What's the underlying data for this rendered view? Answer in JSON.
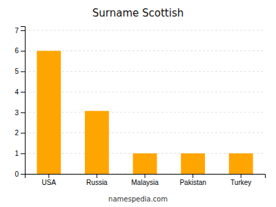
{
  "chart_data": {
    "type": "bar",
    "title": "Surname Scottish",
    "categories": [
      "USA",
      "Russia",
      "Malaysia",
      "Pakistan",
      "Turkey"
    ],
    "values": [
      6,
      3.07,
      1,
      1,
      1
    ],
    "color": "#FFA500",
    "ylim": [
      0,
      7.2
    ],
    "yticks": [
      0,
      1,
      2,
      3,
      4,
      5,
      6,
      7
    ],
    "grid": true,
    "footer": "namespedia.com"
  }
}
